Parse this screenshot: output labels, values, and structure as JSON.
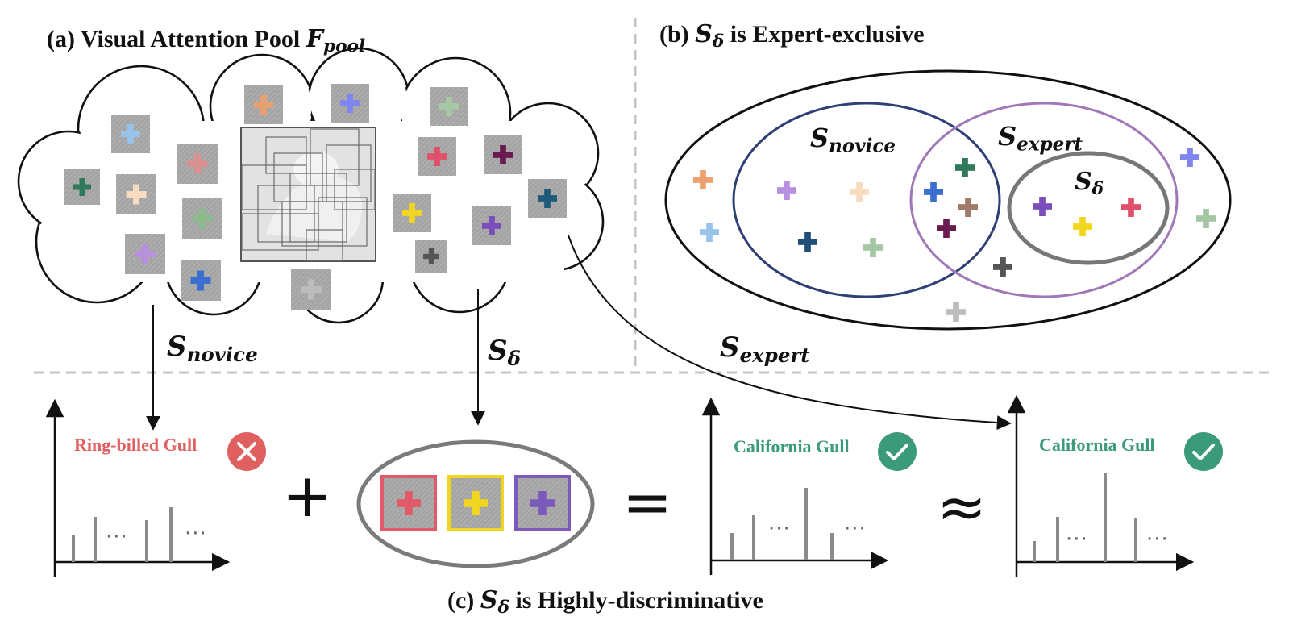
{
  "panel_a": {
    "label": "(a) Visual Attention Pool ",
    "symbol": "F",
    "symbol_sub": "pool"
  },
  "panel_b": {
    "label": " is Expert-exclusive",
    "set_novice": "novice",
    "set_expert": "expert",
    "set_delta": "δ"
  },
  "panel_c": {
    "label": " is Highly-discriminative"
  },
  "symbols": {
    "S": "S",
    "novice": "novice",
    "expert": "expert",
    "delta": "δ"
  },
  "predictions": {
    "novice": {
      "text": "Ring-billed Gull",
      "status": "wrong"
    },
    "combined": {
      "text": "California Gull",
      "status": "correct"
    },
    "expert": {
      "text": "California Gull",
      "status": "correct"
    }
  },
  "operators": {
    "plus": "+",
    "equals": "=",
    "approx": "≈"
  },
  "ellipsis": "···",
  "colors": {
    "wrong": "#e06060",
    "correct": "#3a9a7a",
    "novice_set": "#2e3f75",
    "expert_set": "#a078b8",
    "delta_set": "#777777",
    "bar": "#8a8a8a",
    "dashed": "#c4c4c4"
  }
}
